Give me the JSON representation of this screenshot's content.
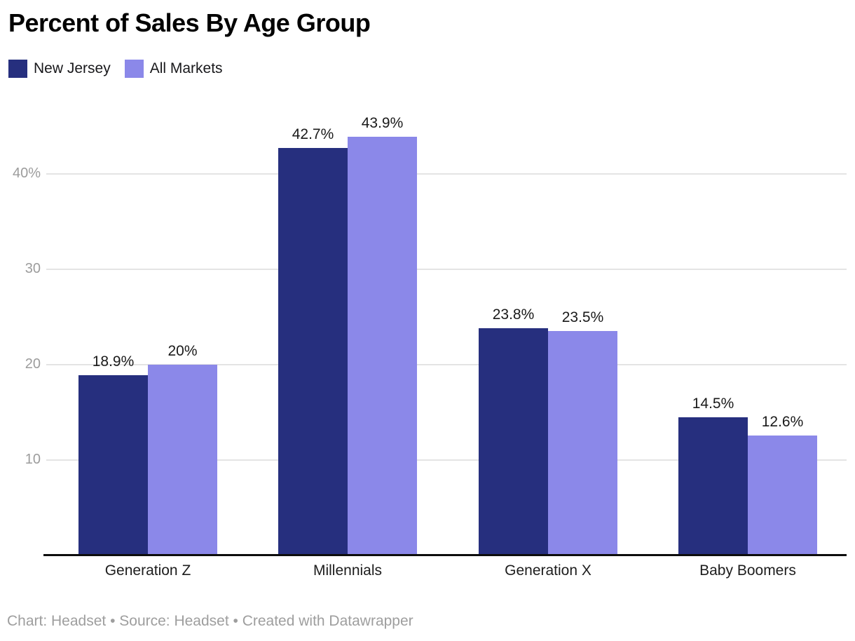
{
  "header": {
    "title": "Percent of Sales By Age Group"
  },
  "legend": {
    "items": [
      {
        "label": "New Jersey",
        "color": "#262f7e"
      },
      {
        "label": "All Markets",
        "color": "#8b88e9"
      }
    ]
  },
  "footer": {
    "text": "Chart: Headset • Source: Headset • Created with Datawrapper"
  },
  "chart_data": {
    "type": "bar",
    "title": "Percent of Sales By Age Group",
    "categories": [
      "Generation Z",
      "Millennials",
      "Generation X",
      "Baby Boomers"
    ],
    "series": [
      {
        "name": "New Jersey",
        "color": "#262f7e",
        "values": [
          18.9,
          42.7,
          23.8,
          14.5
        ],
        "value_labels": [
          "18.9%",
          "42.7%",
          "23.8%",
          "14.5%"
        ]
      },
      {
        "name": "All Markets",
        "color": "#8b88e9",
        "values": [
          20,
          43.9,
          23.5,
          12.6
        ],
        "value_labels": [
          "20%",
          "43.9%",
          "23.5%",
          "12.6%"
        ]
      }
    ],
    "yticks": [
      {
        "value": 10,
        "label": "10"
      },
      {
        "value": 20,
        "label": "20"
      },
      {
        "value": 30,
        "label": "30"
      },
      {
        "value": 40,
        "label": "40%"
      }
    ],
    "ylim": [
      0,
      48
    ],
    "unit": "%",
    "grid": true,
    "value_labels_shown": true,
    "legend_position": "top-left",
    "attribution": "Chart: Headset • Source: Headset • Created with Datawrapper"
  }
}
